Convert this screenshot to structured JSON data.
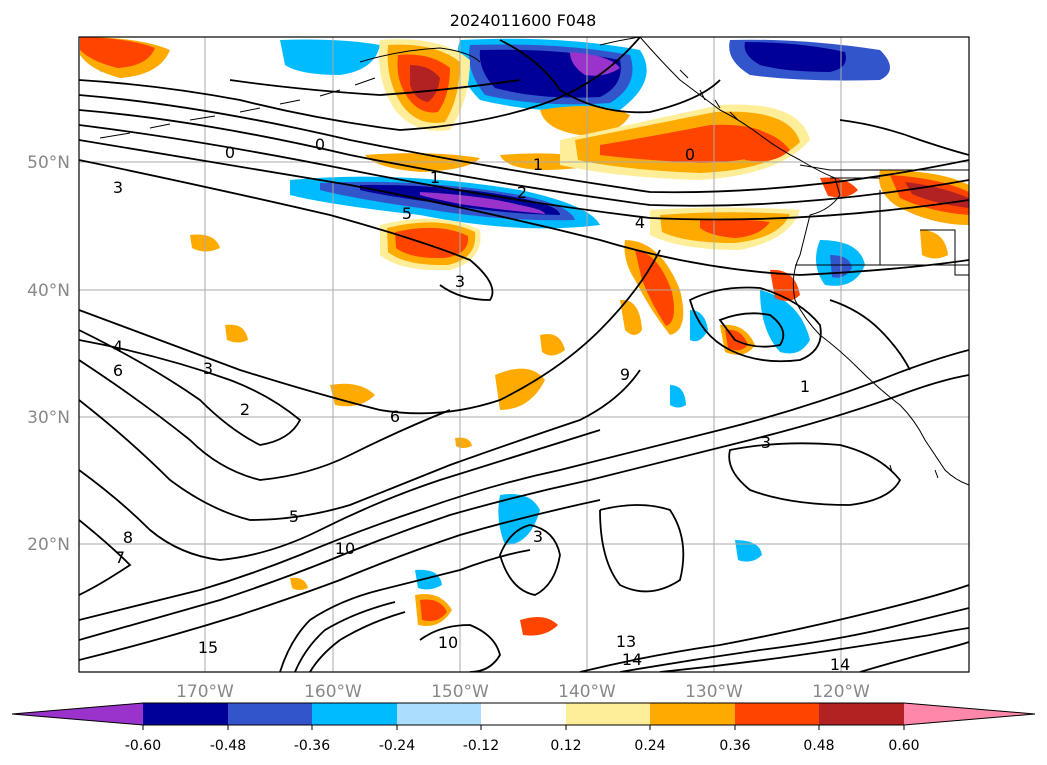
{
  "title": "2024011600 F048",
  "lat_labels": [
    "50°N",
    "40°N",
    "30°N",
    "20°N"
  ],
  "lon_labels": [
    "170°W",
    "160°W",
    "150°W",
    "140°W",
    "130°W",
    "120°W"
  ],
  "colorbar": {
    "ticks": [
      "-0.60",
      "-0.48",
      "-0.36",
      "-0.24",
      "-0.12",
      "0.12",
      "0.24",
      "0.36",
      "0.48",
      "0.60"
    ],
    "colors": [
      "#9933cc",
      "#000099",
      "#3355cc",
      "#00bbff",
      "#aaddff",
      "#ffffff",
      "#ffee99",
      "#ffaa00",
      "#ff4400",
      "#b22222",
      "#ff88aa"
    ]
  },
  "contour_labels": [
    "0",
    "0",
    "0",
    "1",
    "1",
    "1",
    "2",
    "2",
    "3",
    "3",
    "3",
    "3",
    "3",
    "4",
    "4",
    "5",
    "5",
    "6",
    "6",
    "7",
    "8",
    "9",
    "10",
    "10",
    "13",
    "14",
    "14",
    "15"
  ]
}
